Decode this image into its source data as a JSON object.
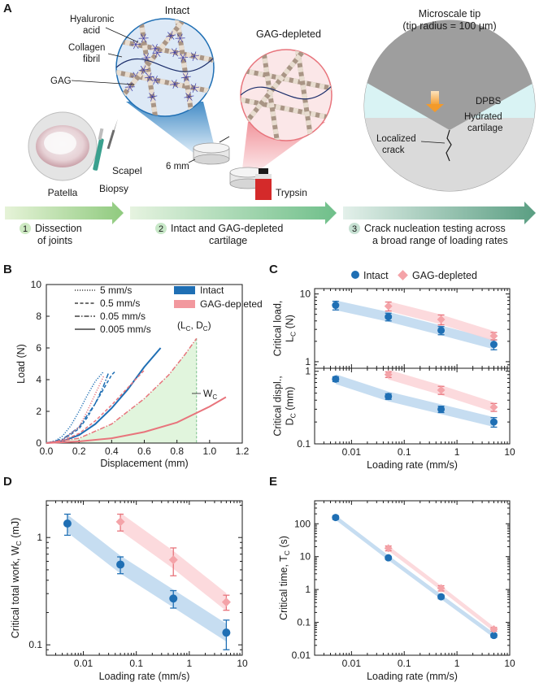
{
  "panel_labels": {
    "a": "A",
    "b": "B",
    "c": "C",
    "d": "D",
    "e": "E"
  },
  "schematic": {
    "intact": "Intact",
    "gag_depleted": "GAG-depleted",
    "hyaluronic_acid": [
      "Hyaluronic",
      "acid"
    ],
    "collagen_fibril": [
      "Collagen",
      "fibril"
    ],
    "gag": "GAG",
    "patella": "Patella",
    "scapel": "Scapel",
    "biopsy": "Biopsy",
    "six_mm": "6 mm",
    "trypsin": "Trypsin",
    "tip_title": [
      "Microscale tip",
      "(tip radius = 100 μm)"
    ],
    "dpbs": "DPBS",
    "hydrated": [
      "Hydrated",
      "cartilage"
    ],
    "localized": [
      "Localized",
      "crack"
    ],
    "steps": [
      {
        "num": "1",
        "lines": [
          "Dissection",
          "of joints"
        ]
      },
      {
        "num": "2",
        "lines": [
          "Intact and GAG-depleted",
          "cartilage"
        ]
      },
      {
        "num": "3",
        "lines": [
          "Crack nucleation testing across",
          "a broad range of loading rates"
        ]
      }
    ],
    "colors": {
      "intact": "#1f6fb4",
      "gag": "#e8747c",
      "arrow": "#7ac08a",
      "tip": "#f39a2a",
      "fibril": "#8b7b6e",
      "gagblue": "#3a3aa8"
    }
  },
  "legend_b": {
    "rates": [
      "5 mm/s",
      "0.5 mm/s",
      "0.05 mm/s",
      "0.005 mm/s"
    ],
    "intact": "Intact",
    "gag": "GAG-depleted",
    "lc_dc": "(L",
    "lc_sub": "C",
    "mid": ", D",
    "dc_sub": "C",
    "close": ")",
    "wc": "W",
    "wc_sub": "C"
  },
  "legend_c": {
    "intact": "Intact",
    "gag": "GAG-depleted"
  },
  "chart_data": [
    {
      "panel": "B",
      "type": "line",
      "xlabel": "Displacement (mm)",
      "ylabel": "Load (N)",
      "xlim": [
        0.0,
        1.2
      ],
      "ylim": [
        0,
        10
      ],
      "xticks": [
        "0.0",
        "0.2",
        "0.4",
        "0.6",
        "0.8",
        "1.0",
        "1.2"
      ],
      "yticks": [
        "0",
        "2",
        "4",
        "6",
        "8",
        "10"
      ],
      "series": [
        {
          "name": "Intact 5 mm/s",
          "group": "Intact",
          "rate": "5 mm/s",
          "x": [
            0,
            0.05,
            0.1,
            0.15,
            0.2,
            0.25,
            0.3,
            0.35
          ],
          "y": [
            0,
            0.1,
            0.45,
            1.1,
            2.0,
            3.0,
            3.9,
            4.5
          ]
        },
        {
          "name": "Intact 0.5 mm/s",
          "group": "Intact",
          "rate": "0.5 mm/s",
          "x": [
            0,
            0.1,
            0.2,
            0.25,
            0.3,
            0.35,
            0.4,
            0.42
          ],
          "y": [
            0,
            0.2,
            0.9,
            1.6,
            2.5,
            3.4,
            4.3,
            4.5
          ]
        },
        {
          "name": "Intact 0.05 mm/s",
          "group": "Intact",
          "rate": "0.05 mm/s",
          "x": [
            0,
            0.1,
            0.2,
            0.3,
            0.35,
            0.38
          ],
          "y": [
            0,
            0.25,
            1.0,
            2.5,
            3.6,
            4.4
          ]
        },
        {
          "name": "Intact 0.005 mm/s",
          "group": "Intact",
          "rate": "0.005 mm/s",
          "x": [
            0,
            0.1,
            0.2,
            0.3,
            0.4,
            0.5,
            0.6,
            0.7
          ],
          "y": [
            0,
            0.12,
            0.5,
            1.2,
            2.2,
            3.4,
            4.8,
            6.0
          ]
        },
        {
          "name": "GAG 5 mm/s",
          "group": "GAG-depleted",
          "rate": "5 mm/s",
          "x": [
            0,
            0.1,
            0.2,
            0.25,
            0.3,
            0.35
          ],
          "y": [
            0,
            0.2,
            1.0,
            2.0,
            3.1,
            4.2
          ]
        },
        {
          "name": "GAG 0.5 mm/s",
          "group": "GAG-depleted",
          "rate": "0.5 mm/s",
          "x": [
            0,
            0.1,
            0.2,
            0.3,
            0.4,
            0.5,
            0.6
          ],
          "y": [
            0,
            0.15,
            0.6,
            1.4,
            2.4,
            3.5,
            4.6
          ]
        },
        {
          "name": "GAG 0.05 mm/s",
          "group": "GAG-depleted",
          "rate": "0.05 mm/s",
          "x": [
            0,
            0.2,
            0.4,
            0.6,
            0.75,
            0.85,
            0.92
          ],
          "y": [
            0,
            0.3,
            1.2,
            2.8,
            4.3,
            5.6,
            6.6
          ]
        },
        {
          "name": "GAG 0.005 mm/s",
          "group": "GAG-depleted",
          "rate": "0.005 mm/s",
          "x": [
            0,
            0.2,
            0.4,
            0.6,
            0.8,
            0.9,
            1.0,
            1.1
          ],
          "y": [
            0,
            0.1,
            0.3,
            0.7,
            1.3,
            1.8,
            2.3,
            2.9
          ]
        }
      ]
    },
    {
      "panel": "C-top",
      "type": "scatter",
      "xscale": "log",
      "yscale": "log",
      "ylabel": [
        "Critical load,",
        "L"
      ],
      "ylabel_sub": "C",
      "ylabel_unit": " (N)",
      "xlim": [
        0.002,
        10
      ],
      "ylim": [
        0.8,
        12
      ],
      "yticks": [
        1,
        10
      ],
      "ytick_labels": [
        "1",
        "10"
      ],
      "series": [
        {
          "name": "Intact",
          "x": [
            0.005,
            0.05,
            0.5,
            5
          ],
          "y": [
            6.8,
            4.6,
            2.9,
            1.8
          ],
          "err": [
            1.0,
            0.6,
            0.4,
            0.3
          ]
        },
        {
          "name": "GAG-depleted",
          "x": [
            0.05,
            0.5,
            5
          ],
          "y": [
            6.6,
            4.2,
            2.4
          ],
          "err": [
            1.0,
            0.7,
            0.3
          ]
        }
      ]
    },
    {
      "panel": "C-bottom",
      "type": "scatter",
      "xscale": "log",
      "yscale": "log",
      "xlabel": "Loading rate (mm/s)",
      "ylabel": [
        "Critical displ.,",
        "D"
      ],
      "ylabel_sub": "C",
      "ylabel_unit": " (mm)",
      "xlim": [
        0.002,
        10
      ],
      "ylim": [
        0.1,
        1.1
      ],
      "xticks": [
        0.01,
        0.1,
        1,
        10
      ],
      "xtick_labels": [
        "0.01",
        "0.1",
        "1",
        "10"
      ],
      "yticks": [
        0.1,
        1
      ],
      "ytick_labels": [
        "0.1",
        "1"
      ],
      "series": [
        {
          "name": "Intact",
          "x": [
            0.005,
            0.05,
            0.5,
            5
          ],
          "y": [
            0.78,
            0.45,
            0.3,
            0.2
          ],
          "err": [
            0.06,
            0.04,
            0.03,
            0.03
          ]
        },
        {
          "name": "GAG-depleted",
          "x": [
            0.05,
            0.5,
            5
          ],
          "y": [
            0.9,
            0.55,
            0.32
          ],
          "err": [
            0.08,
            0.07,
            0.04
          ]
        }
      ]
    },
    {
      "panel": "D",
      "type": "scatter",
      "xscale": "log",
      "yscale": "log",
      "xlabel": "Loading rate (mm/s)",
      "ylabel": "Critical total work, W",
      "ylabel_sub": "C",
      "ylabel_unit": " (mJ)",
      "xlim": [
        0.002,
        10
      ],
      "ylim": [
        0.08,
        2.2
      ],
      "xticks": [
        0.01,
        0.1,
        1,
        10
      ],
      "xtick_labels": [
        "0.01",
        "0.1",
        "1",
        "10"
      ],
      "yticks": [
        0.1,
        1
      ],
      "ytick_labels": [
        "0.1",
        "1"
      ],
      "series": [
        {
          "name": "Intact",
          "x": [
            0.005,
            0.05,
            0.5,
            5
          ],
          "y": [
            1.35,
            0.56,
            0.27,
            0.13
          ],
          "err": [
            0.3,
            0.1,
            0.05,
            0.04
          ]
        },
        {
          "name": "GAG-depleted",
          "x": [
            0.05,
            0.5,
            5
          ],
          "y": [
            1.4,
            0.62,
            0.25
          ],
          "err": [
            0.25,
            0.18,
            0.04
          ]
        }
      ]
    },
    {
      "panel": "E",
      "type": "scatter",
      "xscale": "log",
      "yscale": "log",
      "xlabel": "Loading rate (mm/s)",
      "ylabel": "Critical time, T",
      "ylabel_sub": "C",
      "ylabel_unit": " (s)",
      "xlim": [
        0.002,
        10
      ],
      "ylim": [
        0.01,
        500
      ],
      "xticks": [
        0.01,
        0.1,
        1,
        10
      ],
      "xtick_labels": [
        "0.01",
        "0.1",
        "1",
        "10"
      ],
      "yticks": [
        0.01,
        0.1,
        1,
        10,
        100
      ],
      "ytick_labels": [
        "0.01",
        "0.1",
        "1",
        "10",
        "100"
      ],
      "series": [
        {
          "name": "Intact",
          "x": [
            0.005,
            0.05,
            0.5,
            5
          ],
          "y": [
            155,
            9.2,
            0.6,
            0.04
          ],
          "err": [
            20,
            1.0,
            0.08,
            0.005
          ]
        },
        {
          "name": "GAG-depleted",
          "x": [
            0.05,
            0.5,
            5
          ],
          "y": [
            18,
            1.1,
            0.062
          ],
          "err": [
            3,
            0.2,
            0.008
          ]
        }
      ]
    }
  ]
}
